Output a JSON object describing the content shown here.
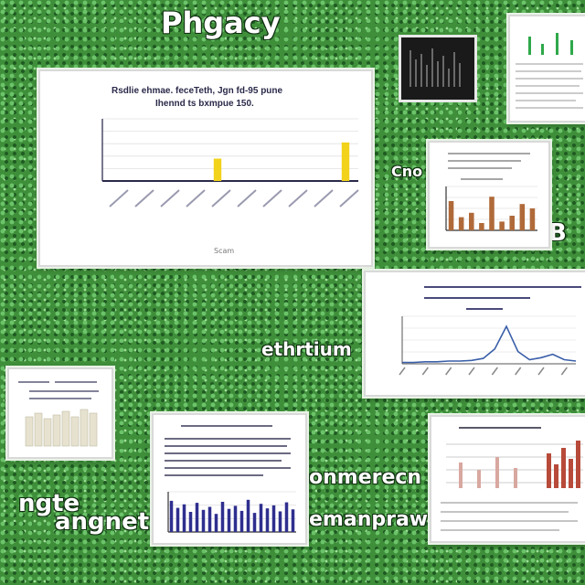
{
  "labels": {
    "top": "Phgacy",
    "right_mid": "B",
    "left_small": "Cno",
    "center": "ethrtium",
    "left_bottom_1": "ngte",
    "left_bottom_2": "angnet",
    "right_bottom_1": "onmerecn",
    "right_bottom_2": "emanpraw"
  },
  "main_chart": {
    "title_line1": "Rsdlie ehmae. feceTeth, Jgn fd-95 pune",
    "title_line2": "Ihennd ts bxmpue 150.",
    "xlabel": "Scam"
  },
  "chart_data": [
    {
      "type": "bar",
      "title": "",
      "categories": [
        "c1",
        "c2",
        "c3",
        "c4",
        "c5",
        "c6",
        "c7",
        "c8",
        "c9",
        "c10"
      ],
      "values": [
        0,
        0,
        0,
        0,
        36,
        0,
        0,
        0,
        0,
        62
      ],
      "ylim": [
        0,
        100
      ],
      "colors": [
        "#f2d21b"
      ]
    },
    {
      "type": "line",
      "title": "",
      "x": [
        1,
        2,
        3,
        4,
        5,
        6,
        7,
        8,
        9,
        10,
        11,
        12,
        13,
        14,
        15,
        16
      ],
      "values": [
        2,
        2,
        3,
        3,
        4,
        4,
        5,
        8,
        22,
        55,
        18,
        6,
        9,
        14,
        6,
        4
      ],
      "ylim": [
        0,
        70
      ],
      "colors": [
        "#3a5fa8"
      ]
    },
    {
      "type": "bar",
      "title": "",
      "categories": [
        "a",
        "b",
        "c",
        "d",
        "e",
        "f",
        "g",
        "h",
        "i",
        "j",
        "k",
        "l",
        "m",
        "n",
        "o",
        "p",
        "q",
        "r",
        "s",
        "t"
      ],
      "values": [
        62,
        48,
        55,
        40,
        58,
        44,
        50,
        36,
        60,
        46,
        52,
        42,
        64,
        38,
        56,
        47,
        53,
        41,
        59,
        45
      ],
      "ylim": [
        0,
        80
      ],
      "colors": [
        "#2f2f8f"
      ]
    },
    {
      "type": "bar",
      "title": "",
      "categories": [
        "a",
        "b",
        "c",
        "d",
        "e",
        "f",
        "g",
        "h",
        "i"
      ],
      "values": [
        40,
        18,
        24,
        10,
        46,
        12,
        20,
        36,
        30
      ],
      "ylim": [
        0,
        60
      ],
      "colors": [
        "#b06a3a"
      ]
    }
  ],
  "colors": {
    "background": "#3f8f3a",
    "accent_yellow": "#f2d21b",
    "accent_blue": "#3a5fa8"
  }
}
